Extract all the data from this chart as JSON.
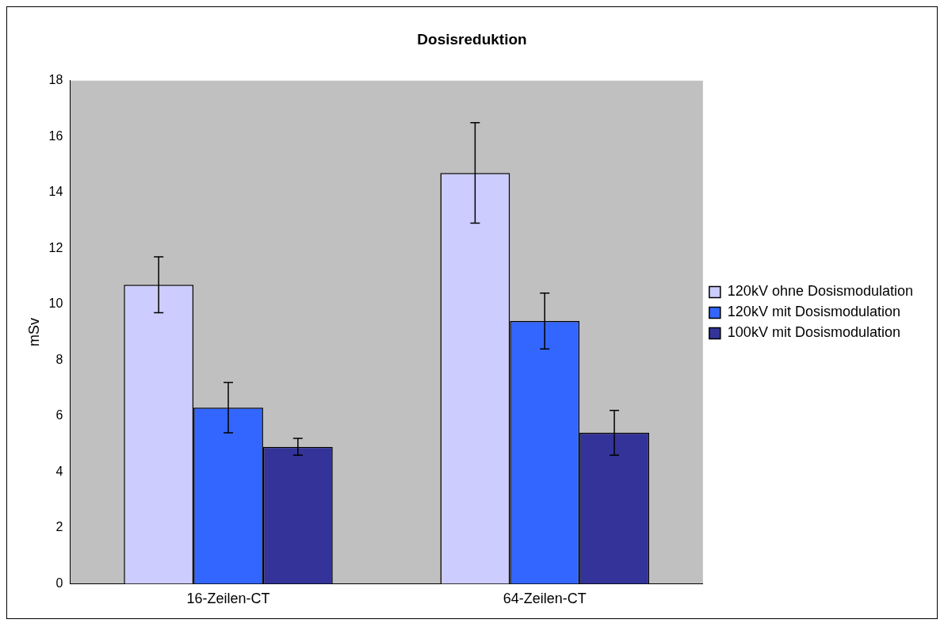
{
  "chart_data": {
    "type": "bar",
    "title": "Dosisreduktion",
    "ylabel": "mSv",
    "categories": [
      "16-Zeilen-CT",
      "64-Zeilen-CT"
    ],
    "series": [
      {
        "name": "120kV ohne Dosismodulation",
        "color": "#ccccff",
        "values": [
          10.7,
          14.7
        ],
        "errors": [
          1.0,
          1.8
        ]
      },
      {
        "name": "120kV mit Dosismodulation",
        "color": "#3366ff",
        "values": [
          6.3,
          9.4
        ],
        "errors": [
          0.9,
          1.0
        ]
      },
      {
        "name": "100kV mit Dosismodulation",
        "color": "#333399",
        "values": [
          4.9,
          5.4
        ],
        "errors": [
          0.3,
          0.8
        ]
      }
    ],
    "ylim": [
      0,
      18
    ],
    "yticks": [
      0,
      2,
      4,
      6,
      8,
      10,
      12,
      14,
      16,
      18
    ],
    "grid": false,
    "legend": "right"
  }
}
